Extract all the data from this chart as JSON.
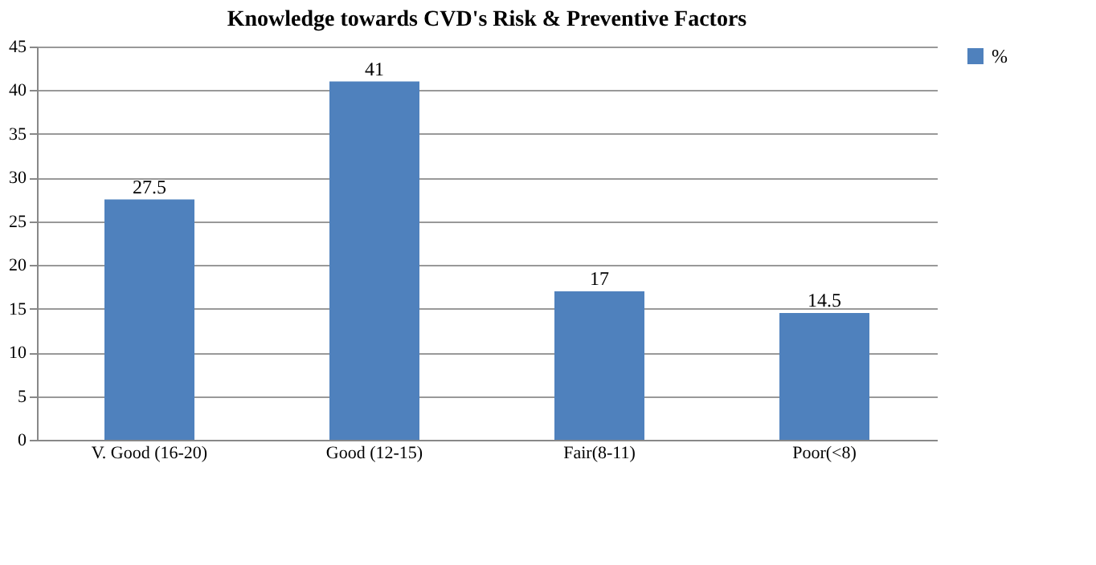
{
  "chart_data": {
    "type": "bar",
    "title": "Knowledge towards CVD's Risk & Preventive Factors",
    "categories": [
      "V. Good (16-20)",
      "Good (12-15)",
      "Fair(8-11)",
      "Poor(<8)"
    ],
    "series": [
      {
        "name": "%",
        "color": "#4f81bd",
        "values": [
          27.5,
          41,
          17,
          14.5
        ]
      }
    ],
    "ylim": [
      0,
      45
    ],
    "yticks": [
      0,
      5,
      10,
      15,
      20,
      25,
      30,
      35,
      40,
      45
    ],
    "grid": "y",
    "legend": "right",
    "data_labels": true
  }
}
